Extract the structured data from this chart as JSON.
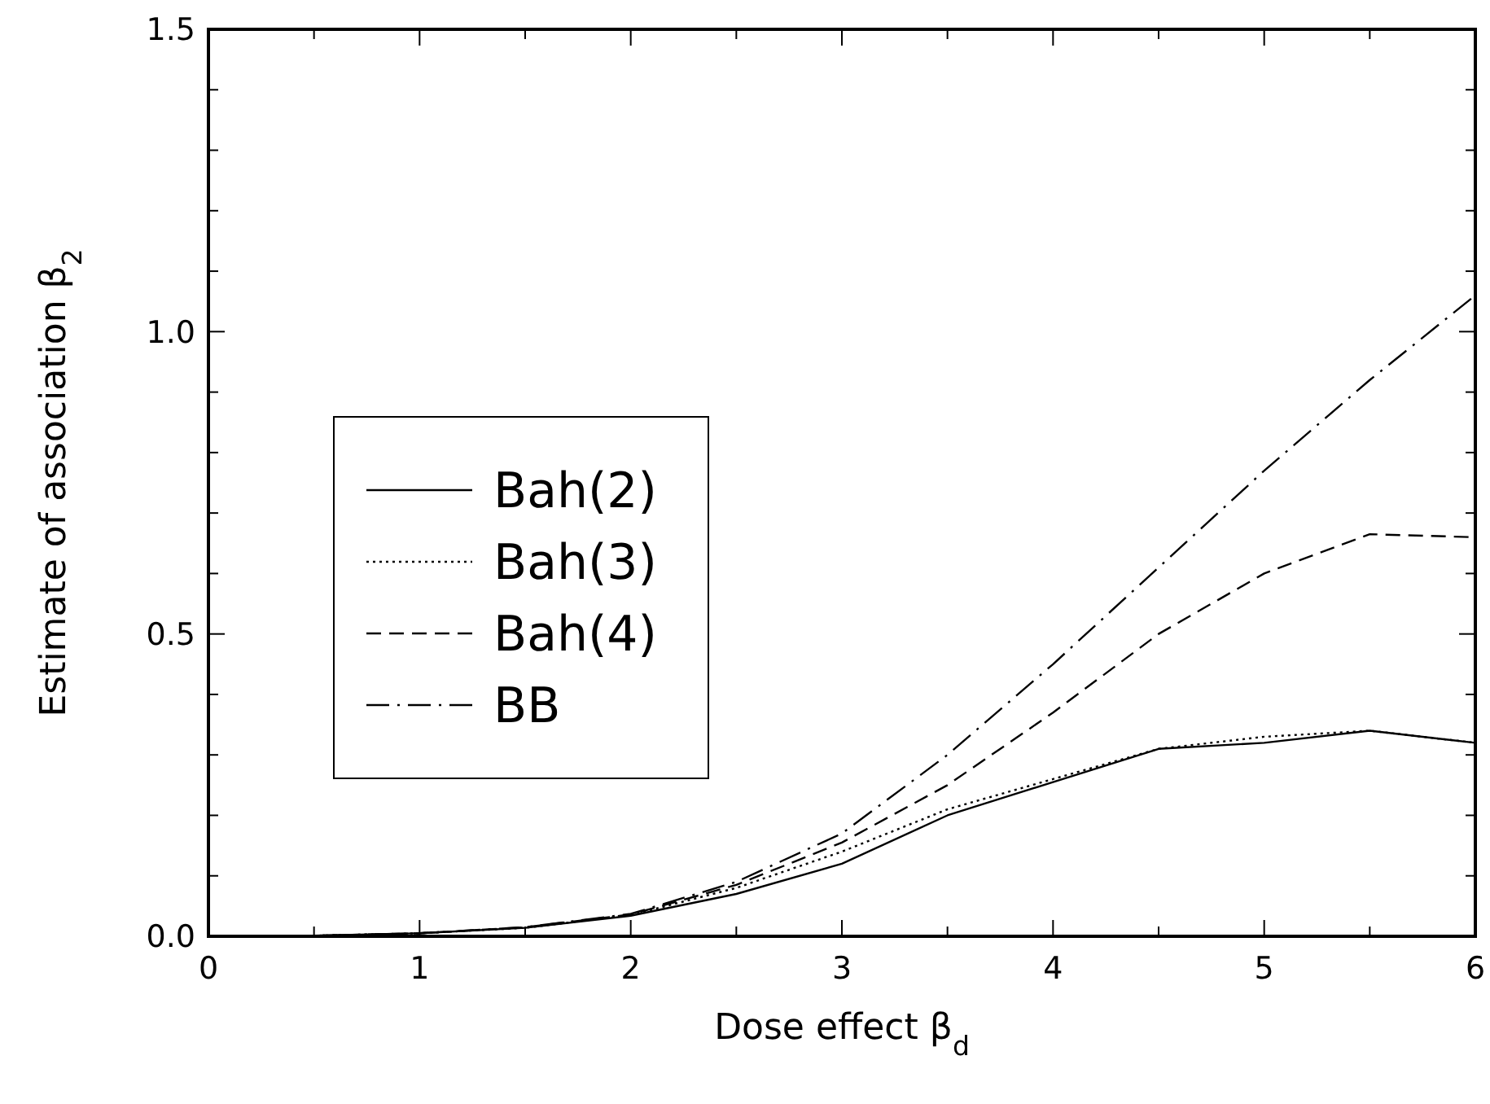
{
  "chart_data": {
    "type": "line",
    "xlabel": "Dose effect β$_{d}$",
    "ylabel": "Estimate of association β$_{2}$",
    "x": [
      0,
      0.5,
      1,
      1.5,
      2,
      2.5,
      3,
      3.5,
      4,
      4.5,
      5,
      5.5,
      6
    ],
    "xlim": [
      0,
      6
    ],
    "xticks": [
      0,
      {
        "value": 0.5,
        "label": null
      },
      1,
      {
        "value": 1.5,
        "label": null
      },
      2,
      {
        "value": 2.5,
        "label": null
      },
      3,
      {
        "value": 3.5,
        "label": null
      },
      4,
      {
        "value": 4.5,
        "label": null
      },
      5,
      {
        "value": 5.5,
        "label": null
      },
      6
    ],
    "ylim": [
      0,
      1.5
    ],
    "yticks": [
      {
        "value": 0,
        "label": "0.0"
      },
      {
        "value": 0.1,
        "label": null
      },
      {
        "value": 0.2,
        "label": null
      },
      {
        "value": 0.3,
        "label": null
      },
      {
        "value": 0.4,
        "label": null
      },
      {
        "value": 0.5,
        "label": "0.5"
      },
      {
        "value": 0.6,
        "label": null
      },
      {
        "value": 0.7,
        "label": null
      },
      {
        "value": 0.8,
        "label": null
      },
      {
        "value": 0.9,
        "label": null
      },
      {
        "value": 1,
        "label": "1.0"
      },
      {
        "value": 1.1,
        "label": null
      },
      {
        "value": 1.2,
        "label": null
      },
      {
        "value": 1.3,
        "label": null
      },
      {
        "value": 1.4,
        "label": null
      },
      {
        "value": 1.5,
        "label": "1.5"
      }
    ],
    "grid": false,
    "legend": "left",
    "series": [
      {
        "name": "Bah(2)",
        "color": "#000000",
        "line_style": "solid",
        "values": [
          0,
          0.001,
          0.005,
          0.014,
          0.034,
          0.07,
          0.12,
          0.2,
          0.255,
          0.31,
          0.32,
          0.34,
          0.32
        ]
      },
      {
        "name": "Bah(3)",
        "color": "#000000",
        "line_style": "dotted",
        "values": [
          0,
          0.001,
          0.005,
          0.014,
          0.035,
          0.08,
          0.14,
          0.21,
          0.26,
          0.31,
          0.33,
          0.34,
          0.32
        ]
      },
      {
        "name": "Bah(4)",
        "color": "#000000",
        "line_style": "dashed",
        "values": [
          0,
          0.001,
          0.005,
          0.015,
          0.036,
          0.085,
          0.155,
          0.25,
          0.37,
          0.5,
          0.6,
          0.665,
          0.66
        ]
      },
      {
        "name": "BB",
        "color": "#000000",
        "line_style": "dashdot",
        "values": [
          0,
          0.001,
          0.005,
          0.015,
          0.037,
          0.09,
          0.17,
          0.3,
          0.45,
          0.61,
          0.77,
          0.92,
          1.06
        ]
      }
    ]
  }
}
